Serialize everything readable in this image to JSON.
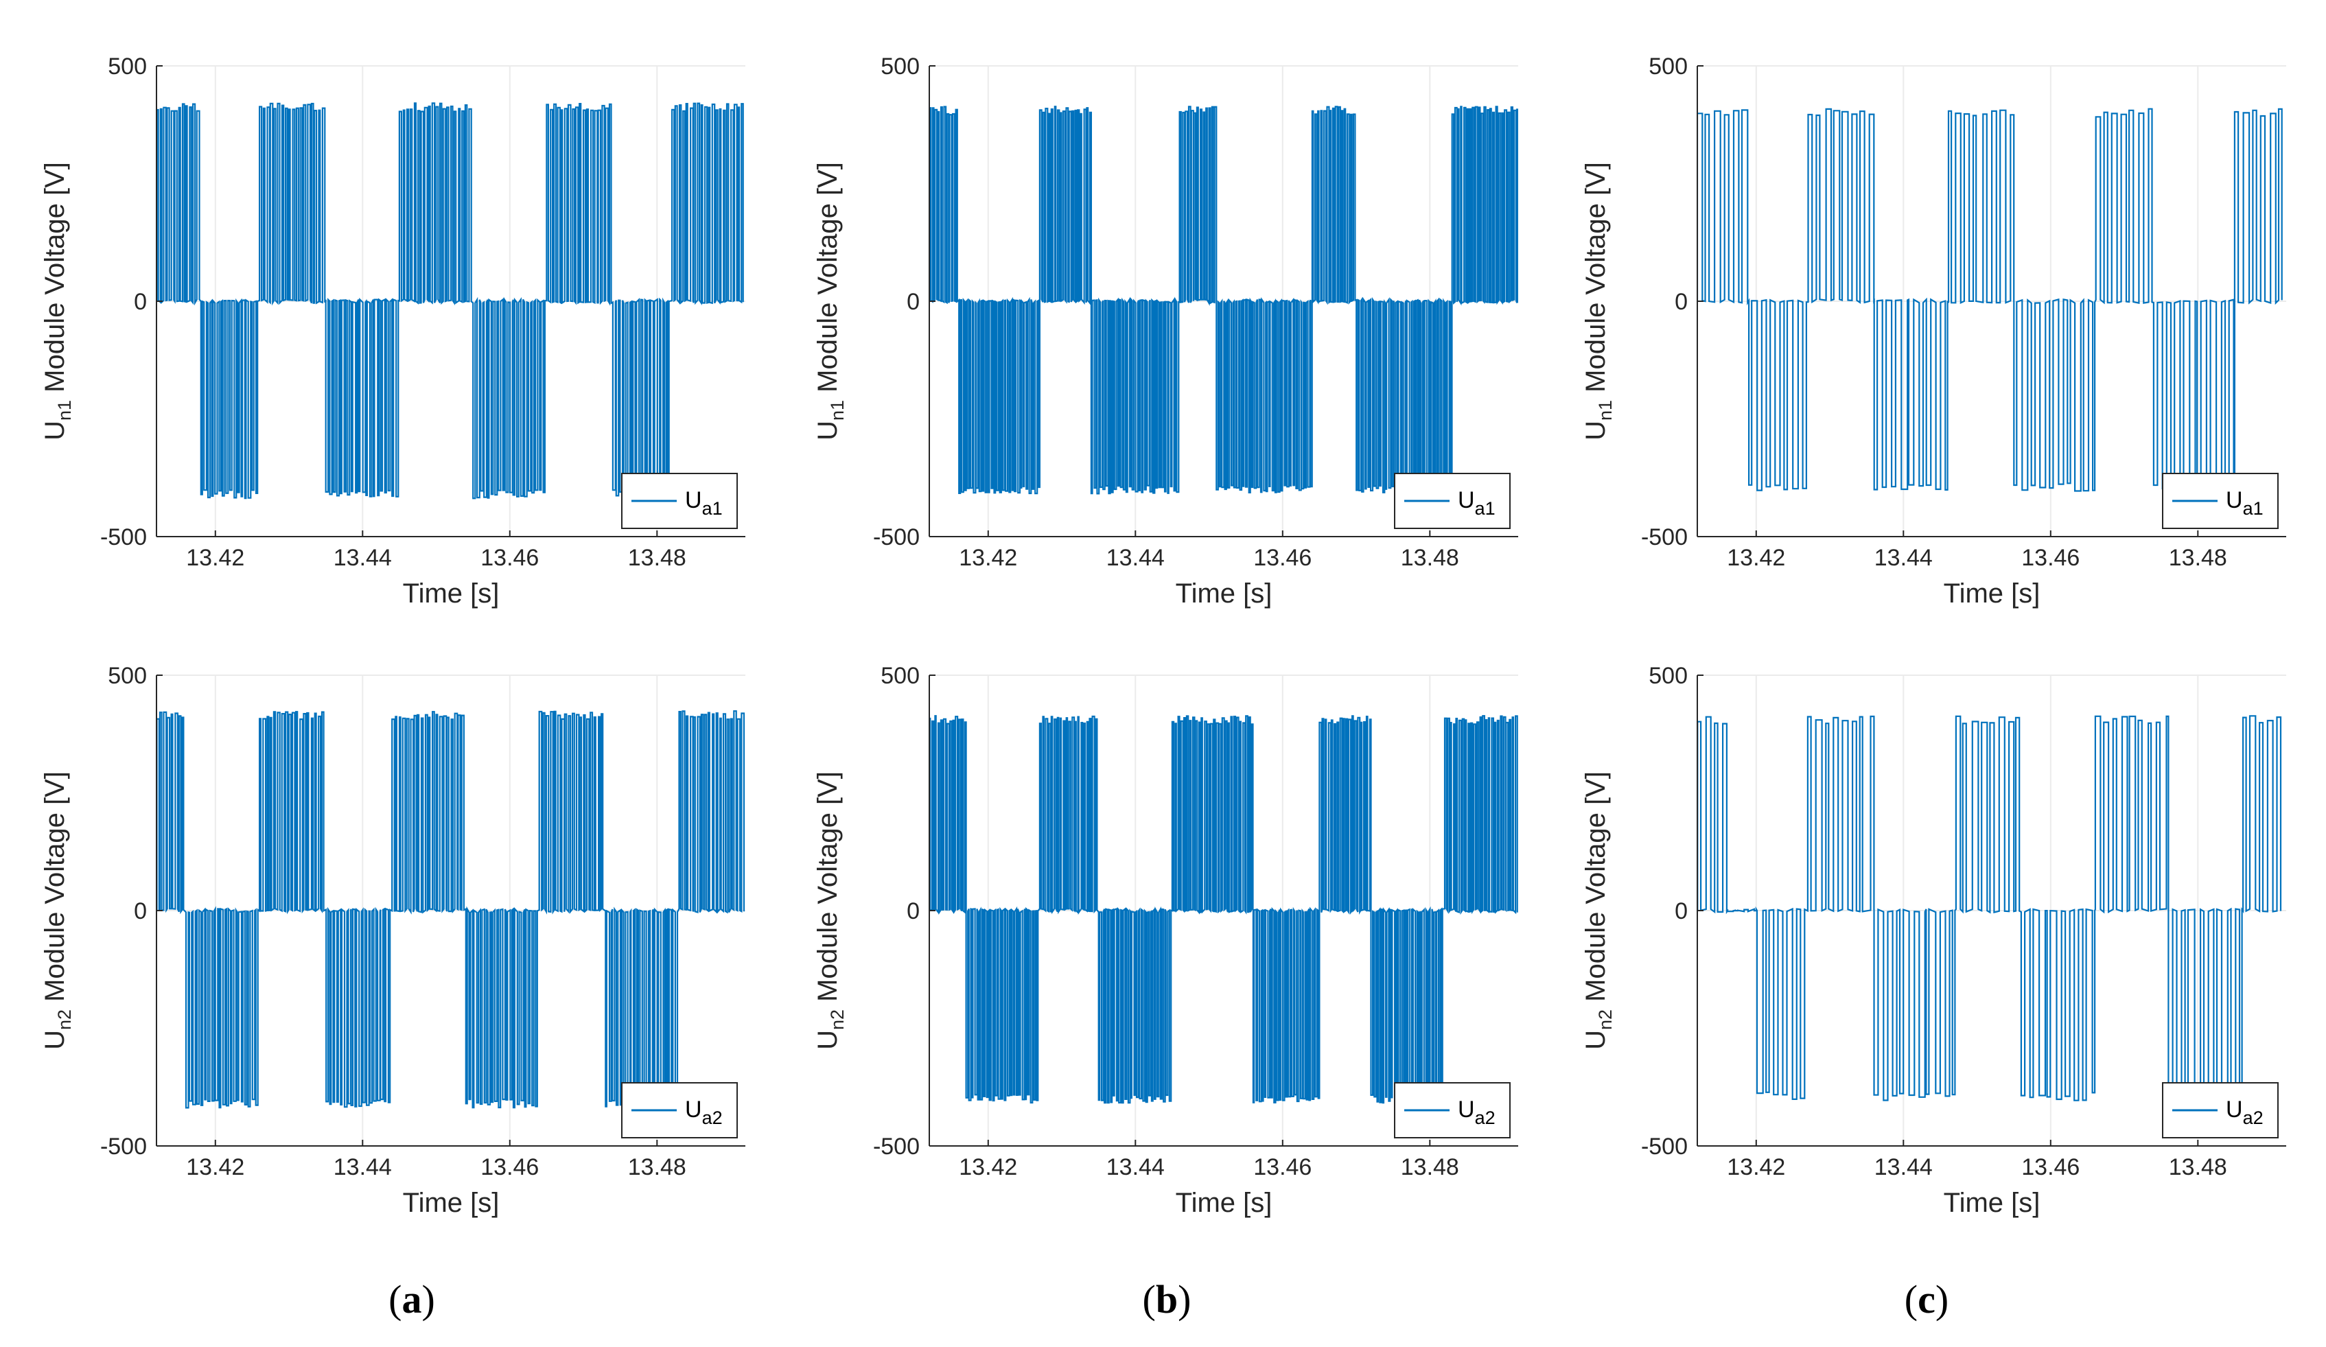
{
  "figure": {
    "panel_labels": [
      {
        "open": "(",
        "letter": "a",
        "close": ")"
      },
      {
        "open": "(",
        "letter": "b",
        "close": ")"
      },
      {
        "open": "(",
        "letter": "c",
        "close": ")"
      }
    ]
  },
  "chart_data": [
    {
      "type": "line",
      "panel": "a",
      "row": 1,
      "xlabel": "Time [s]",
      "ylabel": {
        "main": "U",
        "sub": "n1",
        "rest": " Module Voltage [V]"
      },
      "xlim": [
        13.412,
        13.492
      ],
      "ylim": [
        -500,
        500
      ],
      "xticks": [
        "13.42",
        "13.44",
        "13.46",
        "13.48"
      ],
      "xtick_values": [
        13.42,
        13.44,
        13.46,
        13.48
      ],
      "yticks": [
        "-500",
        "0",
        "500"
      ],
      "ytick_values": [
        -500,
        0,
        500
      ],
      "grid": true,
      "legend_position": "bottom-right",
      "series": [
        {
          "name": {
            "main": "U",
            "sub": "a1"
          },
          "color": "#0072BD",
          "pattern": {
            "levels": [
              412,
              0,
              -410
            ],
            "segments": [
              {
                "from": 13.412,
                "to": 13.418,
                "mode": "pos"
              },
              {
                "from": 13.418,
                "to": 13.426,
                "mode": "neg"
              },
              {
                "from": 13.426,
                "to": 13.435,
                "mode": "pos"
              },
              {
                "from": 13.435,
                "to": 13.445,
                "mode": "neg"
              },
              {
                "from": 13.445,
                "to": 13.455,
                "mode": "pos"
              },
              {
                "from": 13.455,
                "to": 13.465,
                "mode": "neg"
              },
              {
                "from": 13.465,
                "to": 13.474,
                "mode": "pos"
              },
              {
                "from": 13.474,
                "to": 13.482,
                "mode": "neg"
              },
              {
                "from": 13.482,
                "to": 13.492,
                "mode": "pos"
              }
            ],
            "pulse_period": 0.0005
          }
        }
      ]
    },
    {
      "type": "line",
      "panel": "b",
      "row": 1,
      "xlabel": "Time [s]",
      "ylabel": {
        "main": "U",
        "sub": "n1",
        "rest": " Module Voltage [V]"
      },
      "xlim": [
        13.412,
        13.492
      ],
      "ylim": [
        -500,
        500
      ],
      "xticks": [
        "13.42",
        "13.44",
        "13.46",
        "13.48"
      ],
      "xtick_values": [
        13.42,
        13.44,
        13.46,
        13.48
      ],
      "yticks": [
        "-500",
        "0",
        "500"
      ],
      "ytick_values": [
        -500,
        0,
        500
      ],
      "grid": true,
      "legend_position": "bottom-right",
      "series": [
        {
          "name": {
            "main": "U",
            "sub": "a1"
          },
          "color": "#0072BD",
          "pattern": {
            "levels": [
              405,
              0,
              -400
            ],
            "segments": [
              {
                "from": 13.412,
                "to": 13.416,
                "mode": "pos"
              },
              {
                "from": 13.416,
                "to": 13.427,
                "mode": "neg"
              },
              {
                "from": 13.427,
                "to": 13.434,
                "mode": "pos"
              },
              {
                "from": 13.434,
                "to": 13.446,
                "mode": "neg"
              },
              {
                "from": 13.446,
                "to": 13.451,
                "mode": "pos"
              },
              {
                "from": 13.451,
                "to": 13.464,
                "mode": "neg"
              },
              {
                "from": 13.464,
                "to": 13.47,
                "mode": "pos"
              },
              {
                "from": 13.47,
                "to": 13.483,
                "mode": "neg"
              },
              {
                "from": 13.483,
                "to": 13.492,
                "mode": "pos"
              }
            ],
            "pulse_period": 0.0004
          }
        }
      ]
    },
    {
      "type": "line",
      "panel": "c",
      "row": 1,
      "xlabel": "Time [s]",
      "ylabel": {
        "main": "U",
        "sub": "n1",
        "rest": " Module Voltage [V]"
      },
      "xlim": [
        13.412,
        13.492
      ],
      "ylim": [
        -500,
        500
      ],
      "xticks": [
        "13.42",
        "13.44",
        "13.46",
        "13.48"
      ],
      "xtick_values": [
        13.42,
        13.44,
        13.46,
        13.48
      ],
      "yticks": [
        "-500",
        "0",
        "500"
      ],
      "ytick_values": [
        -500,
        0,
        500
      ],
      "grid": true,
      "legend_position": "bottom-right",
      "series": [
        {
          "name": {
            "main": "U",
            "sub": "a1"
          },
          "color": "#0072BD",
          "pattern": {
            "levels": [
              400,
              0,
              -395
            ],
            "segments": [
              {
                "from": 13.412,
                "to": 13.419,
                "mode": "pos"
              },
              {
                "from": 13.419,
                "to": 13.427,
                "mode": "neg"
              },
              {
                "from": 13.427,
                "to": 13.436,
                "mode": "pos"
              },
              {
                "from": 13.436,
                "to": 13.446,
                "mode": "neg"
              },
              {
                "from": 13.446,
                "to": 13.455,
                "mode": "pos"
              },
              {
                "from": 13.455,
                "to": 13.466,
                "mode": "neg"
              },
              {
                "from": 13.466,
                "to": 13.474,
                "mode": "pos"
              },
              {
                "from": 13.474,
                "to": 13.485,
                "mode": "neg"
              },
              {
                "from": 13.485,
                "to": 13.492,
                "mode": "pos"
              }
            ],
            "pulse_period": 0.0012
          }
        }
      ]
    },
    {
      "type": "line",
      "panel": "a",
      "row": 2,
      "xlabel": "Time [s]",
      "ylabel": {
        "main": "U",
        "sub": "n2",
        "rest": " Module Voltage [V]"
      },
      "xlim": [
        13.412,
        13.492
      ],
      "ylim": [
        -500,
        500
      ],
      "xticks": [
        "13.42",
        "13.44",
        "13.46",
        "13.48"
      ],
      "xtick_values": [
        13.42,
        13.44,
        13.46,
        13.48
      ],
      "yticks": [
        "-500",
        "0",
        "500"
      ],
      "ytick_values": [
        -500,
        0,
        500
      ],
      "grid": true,
      "legend_position": "bottom-right",
      "series": [
        {
          "name": {
            "main": "U",
            "sub": "a2"
          },
          "color": "#0072BD",
          "pattern": {
            "levels": [
              415,
              0,
              -410
            ],
            "segments": [
              {
                "from": 13.412,
                "to": 13.416,
                "mode": "pos"
              },
              {
                "from": 13.416,
                "to": 13.426,
                "mode": "neg"
              },
              {
                "from": 13.426,
                "to": 13.435,
                "mode": "pos"
              },
              {
                "from": 13.435,
                "to": 13.444,
                "mode": "neg"
              },
              {
                "from": 13.444,
                "to": 13.454,
                "mode": "pos"
              },
              {
                "from": 13.454,
                "to": 13.464,
                "mode": "neg"
              },
              {
                "from": 13.464,
                "to": 13.473,
                "mode": "pos"
              },
              {
                "from": 13.473,
                "to": 13.483,
                "mode": "neg"
              },
              {
                "from": 13.483,
                "to": 13.492,
                "mode": "pos"
              }
            ],
            "pulse_period": 0.0005
          }
        }
      ]
    },
    {
      "type": "line",
      "panel": "b",
      "row": 2,
      "xlabel": "Time [s]",
      "ylabel": {
        "main": "U",
        "sub": "n2",
        "rest": " Module Voltage [V]"
      },
      "xlim": [
        13.412,
        13.492
      ],
      "ylim": [
        -500,
        500
      ],
      "xticks": [
        "13.42",
        "13.44",
        "13.46",
        "13.48"
      ],
      "xtick_values": [
        13.42,
        13.44,
        13.46,
        13.48
      ],
      "yticks": [
        "-500",
        "0",
        "500"
      ],
      "ytick_values": [
        -500,
        0,
        500
      ],
      "grid": true,
      "legend_position": "bottom-right",
      "series": [
        {
          "name": {
            "main": "U",
            "sub": "a2"
          },
          "color": "#0072BD",
          "pattern": {
            "levels": [
              405,
              0,
              -400
            ],
            "segments": [
              {
                "from": 13.412,
                "to": 13.417,
                "mode": "pos"
              },
              {
                "from": 13.417,
                "to": 13.427,
                "mode": "neg"
              },
              {
                "from": 13.427,
                "to": 13.435,
                "mode": "pos"
              },
              {
                "from": 13.435,
                "to": 13.445,
                "mode": "neg"
              },
              {
                "from": 13.445,
                "to": 13.456,
                "mode": "pos"
              },
              {
                "from": 13.456,
                "to": 13.465,
                "mode": "neg"
              },
              {
                "from": 13.465,
                "to": 13.472,
                "mode": "pos"
              },
              {
                "from": 13.472,
                "to": 13.482,
                "mode": "neg"
              },
              {
                "from": 13.482,
                "to": 13.492,
                "mode": "pos"
              }
            ],
            "pulse_period": 0.0004
          }
        }
      ]
    },
    {
      "type": "line",
      "panel": "c",
      "row": 2,
      "xlabel": "Time [s]",
      "ylabel": {
        "main": "U",
        "sub": "n2",
        "rest": " Module Voltage [V]"
      },
      "xlim": [
        13.412,
        13.492
      ],
      "ylim": [
        -500,
        500
      ],
      "xticks": [
        "13.42",
        "13.44",
        "13.46",
        "13.48"
      ],
      "xtick_values": [
        13.42,
        13.44,
        13.46,
        13.48
      ],
      "yticks": [
        "-500",
        "0",
        "500"
      ],
      "ytick_values": [
        -500,
        0,
        500
      ],
      "grid": true,
      "legend_position": "bottom-right",
      "series": [
        {
          "name": {
            "main": "U",
            "sub": "a2"
          },
          "color": "#0072BD",
          "pattern": {
            "levels": [
              405,
              0,
              -395
            ],
            "segments": [
              {
                "from": 13.412,
                "to": 13.416,
                "mode": "pos"
              },
              {
                "from": 13.416,
                "to": 13.42,
                "mode": "zero"
              },
              {
                "from": 13.42,
                "to": 13.427,
                "mode": "neg"
              },
              {
                "from": 13.427,
                "to": 13.436,
                "mode": "pos"
              },
              {
                "from": 13.436,
                "to": 13.447,
                "mode": "neg"
              },
              {
                "from": 13.447,
                "to": 13.456,
                "mode": "pos"
              },
              {
                "from": 13.456,
                "to": 13.466,
                "mode": "neg"
              },
              {
                "from": 13.466,
                "to": 13.476,
                "mode": "pos"
              },
              {
                "from": 13.476,
                "to": 13.486,
                "mode": "neg"
              },
              {
                "from": 13.486,
                "to": 13.492,
                "mode": "pos"
              }
            ],
            "pulse_period": 0.0012
          }
        }
      ]
    }
  ]
}
